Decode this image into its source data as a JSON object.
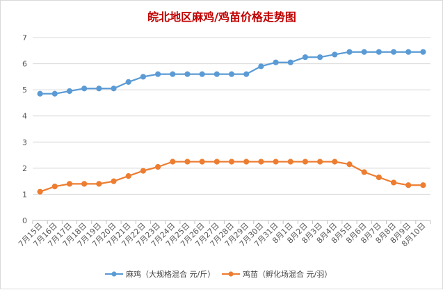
{
  "chart_data": {
    "type": "line",
    "title": "皖北地区麻鸡/鸡苗价格走势图",
    "title_color": "#c00000",
    "categories": [
      "7月15日",
      "7月16日",
      "7月17日",
      "7月18日",
      "7月19日",
      "7月20日",
      "7月21日",
      "7月22日",
      "7月23日",
      "7月24日",
      "7月25日",
      "7月26日",
      "7月27日",
      "7月28日",
      "7月29日",
      "7月30日",
      "7月31日",
      "8月1日",
      "8月2日",
      "8月3日",
      "8月4日",
      "8月5日",
      "8月6日",
      "8月7日",
      "8月8日",
      "8月9日",
      "8月10日"
    ],
    "series": [
      {
        "name": "麻鸡（大规格混合 元/斤）",
        "color": "#5b9bd5",
        "values": [
          4.85,
          4.85,
          4.95,
          5.05,
          5.05,
          5.05,
          5.3,
          5.5,
          5.6,
          5.6,
          5.6,
          5.6,
          5.6,
          5.6,
          5.6,
          5.9,
          6.05,
          6.05,
          6.25,
          6.25,
          6.35,
          6.45,
          6.45,
          6.45,
          6.45,
          6.45,
          6.45
        ]
      },
      {
        "name": "鸡苗（孵化场混合 元/羽）",
        "color": "#ed7d31",
        "values": [
          1.1,
          1.3,
          1.4,
          1.4,
          1.4,
          1.5,
          1.7,
          1.9,
          2.05,
          2.25,
          2.25,
          2.25,
          2.25,
          2.25,
          2.25,
          2.25,
          2.25,
          2.25,
          2.25,
          2.25,
          2.25,
          2.15,
          1.85,
          1.65,
          1.45,
          1.35,
          1.35
        ]
      }
    ],
    "y_ticks": [
      "0",
      "1",
      "2",
      "3",
      "4",
      "5",
      "6",
      "7"
    ],
    "ylim": [
      0,
      7
    ],
    "grid": true,
    "legend_position": "bottom"
  }
}
